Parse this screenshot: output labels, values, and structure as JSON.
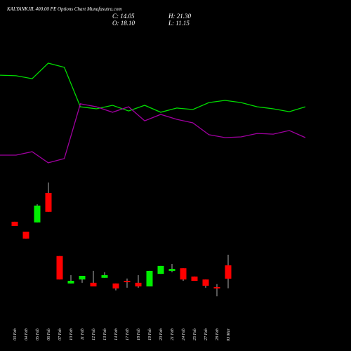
{
  "chart_data": {
    "type": "candlestick",
    "title": "KALYANKJIL 400.00 PE Options Chart Munafasutra.com",
    "info": [
      "C: 14.05",
      "H: 21.30",
      "O: 18.10",
      "L: 11.15"
    ],
    "categories": [
      "03 Feb",
      "04 Feb",
      "05 Feb",
      "06 Feb",
      "07 Feb",
      "10 Feb",
      "11 Feb",
      "12 Feb",
      "13 Feb",
      "14 Feb",
      "17 Feb",
      "18 Feb",
      "19 Feb",
      "20 Feb",
      "21 Feb",
      "24 Feb",
      "25 Feb",
      "27 Feb",
      "28 Feb",
      "03 Mar"
    ],
    "open": [
      31.3,
      28.3,
      31.1,
      40.0,
      20.9,
      12.6,
      13.8,
      12.8,
      14.3,
      12.6,
      13.4,
      12.8,
      11.7,
      15.5,
      16.4,
      17.2,
      14.7,
      13.8,
      11.5,
      18.1
    ],
    "high": [
      31.3,
      28.3,
      36.6,
      43.2,
      20.9,
      15.1,
      14.9,
      16.4,
      16.0,
      12.6,
      14.1,
      15.1,
      16.4,
      17.9,
      18.5,
      17.2,
      14.7,
      13.8,
      12.4,
      21.3
    ],
    "low": [
      30.0,
      26.2,
      31.1,
      34.3,
      13.8,
      12.6,
      12.8,
      11.7,
      14.3,
      10.5,
      11.3,
      11.3,
      11.7,
      15.5,
      16.0,
      13.4,
      13.4,
      11.3,
      8.7,
      11.15
    ],
    "close": [
      30.0,
      26.2,
      36.2,
      34.3,
      13.8,
      13.4,
      14.9,
      11.7,
      15.1,
      11.1,
      13.0,
      11.7,
      16.4,
      17.9,
      17.0,
      13.8,
      13.4,
      11.9,
      11.1,
      14.05
    ],
    "up_color": "#00ee00",
    "down_color": "#ff0000",
    "ylim": [
      0,
      98.5
    ],
    "y2lim": [
      0,
      100
    ],
    "series": [
      {
        "color": "#00dd00",
        "axis": "y2",
        "values": [
          58.8,
          58.5,
          56.9,
          65.4,
          63.1,
          41.5,
          40.4,
          42.3,
          39.2,
          42.3,
          38.5,
          40.8,
          40,
          43.8,
          45,
          43.8,
          41.5,
          40.4,
          38.8,
          41.5
        ]
      },
      {
        "color": "#a000a0",
        "axis": "y2",
        "values": [
          15,
          15,
          16.9,
          10.8,
          13.1,
          43.1,
          41.5,
          38.5,
          41.5,
          33.8,
          37.3,
          34.6,
          32.7,
          26.2,
          24.6,
          25,
          26.9,
          26.5,
          28.5,
          24.6
        ]
      }
    ]
  }
}
